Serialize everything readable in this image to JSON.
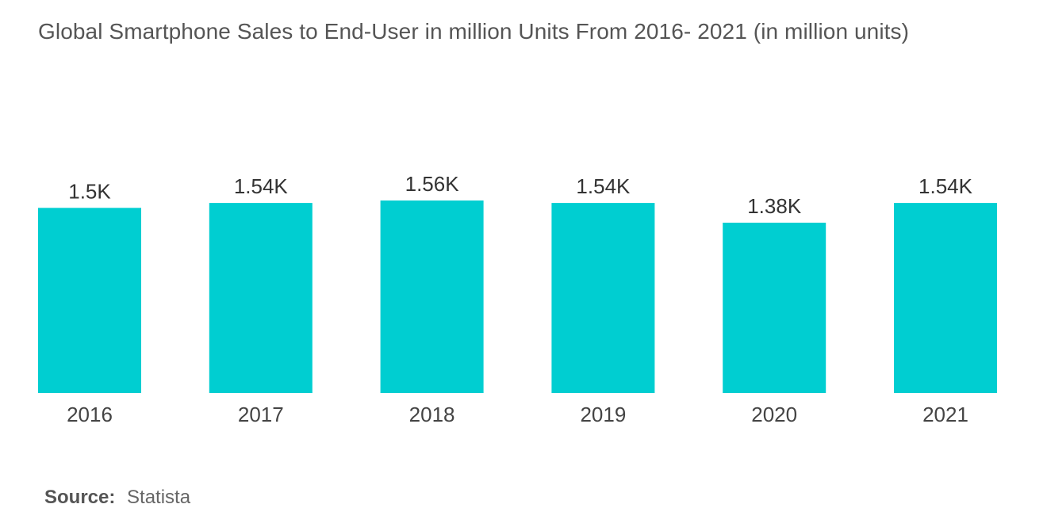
{
  "chart_data": {
    "type": "bar",
    "title": "Global Smartphone Sales to End-User in million Units From 2016- 2021 (in million units)",
    "categories": [
      "2016",
      "2017",
      "2018",
      "2019",
      "2020",
      "2021"
    ],
    "values": [
      1500,
      1540,
      1560,
      1540,
      1380,
      1540
    ],
    "data_labels": [
      "1.5K",
      "1.54K",
      "1.56K",
      "1.54K",
      "1.38K",
      "1.54K"
    ],
    "xlabel": "",
    "ylabel": "",
    "ylim": [
      0,
      1560
    ],
    "grid": false,
    "bar_color": "#00ced1"
  },
  "source": {
    "label": "Source:",
    "value": "Statista"
  }
}
